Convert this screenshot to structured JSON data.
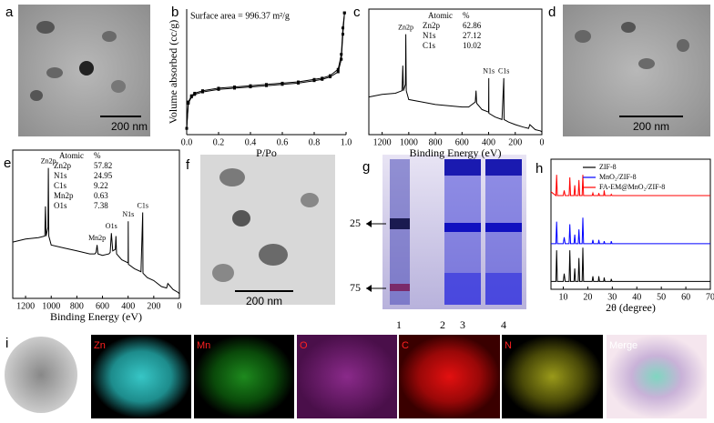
{
  "panel_labels": [
    "a",
    "b",
    "c",
    "d",
    "e",
    "f",
    "g",
    "h",
    "i"
  ],
  "scale_bars": [
    "200 nm",
    "200 nm",
    "200 nm"
  ],
  "gel": {
    "markers": [
      "25",
      "75"
    ],
    "lanes": [
      "1",
      "2",
      "3",
      "4"
    ]
  },
  "maps": {
    "labels": [
      "Zn",
      "Mn",
      "O",
      "C",
      "N",
      "Merge"
    ]
  },
  "chart_data": [
    {
      "type": "line",
      "x_label": "P/Po",
      "y_label": "Volume absorbed (cc/g)",
      "annotation": "Surface area = 996.37 m²/g",
      "markers": true,
      "x": [
        0,
        0.01,
        0.03,
        0.05,
        0.1,
        0.2,
        0.3,
        0.4,
        0.5,
        0.6,
        0.7,
        0.8,
        0.85,
        0.9,
        0.95,
        0.97,
        0.98,
        0.99
      ],
      "series": [
        {
          "color": "#000000",
          "values": [
            5,
            25,
            30,
            32,
            34,
            36,
            37,
            38,
            39,
            40,
            41,
            43,
            44,
            46,
            50,
            60,
            80,
            97
          ]
        },
        {
          "color": "#000000",
          "values": [
            5,
            26,
            31,
            33,
            35,
            37,
            38,
            39,
            40,
            41,
            42,
            44,
            45,
            47,
            52,
            64,
            85,
            97
          ]
        }
      ],
      "xlim": [
        0,
        1
      ],
      "ylim": [
        0,
        100
      ],
      "xticks": [
        {
          "value": 0,
          "label": "0.0"
        },
        0.2,
        0.4,
        0.6,
        0.8,
        {
          "value": 1,
          "label": "1.0"
        }
      ]
    },
    {
      "type": "line",
      "x_label": "Binding Energy (eV)",
      "inset": {
        "header": [
          "Atomic",
          "%"
        ],
        "rows": [
          [
            "Zn2p",
            "62.86"
          ],
          [
            "N1s",
            "27.12"
          ],
          [
            "C1s",
            "10.02"
          ]
        ]
      },
      "peaks": [
        {
          "label": "Zn2p",
          "x": 1022
        },
        {
          "label": "N1s",
          "x": 399
        },
        {
          "label": "C1s",
          "x": 286
        }
      ],
      "x": [
        1300,
        1200,
        1100,
        1050,
        1045,
        1040,
        1025,
        1022,
        1019,
        1000,
        900,
        800,
        700,
        600,
        550,
        500,
        495,
        490,
        450,
        400,
        399,
        398,
        350,
        300,
        286,
        284,
        250,
        200,
        140,
        100,
        90,
        50,
        10,
        0
      ],
      "series": [
        {
          "color": "#000000",
          "values": [
            30,
            32,
            33,
            35,
            55,
            35,
            40,
            80,
            35,
            28,
            26,
            24,
            23,
            22,
            22,
            26,
            35,
            25,
            20,
            18,
            45,
            17,
            14,
            12,
            45,
            12,
            10,
            8,
            6,
            5,
            8,
            4,
            3,
            2
          ]
        }
      ],
      "xlim": [
        1300,
        0
      ],
      "ylim": [
        0,
        100
      ],
      "xticks": [
        1200,
        1000,
        800,
        600,
        400,
        200,
        0
      ]
    },
    {
      "type": "line",
      "x_label": "Binding Energy (eV)",
      "inset": {
        "header": [
          "Atomic",
          "%"
        ],
        "rows": [
          [
            "Zn2p",
            "57.82"
          ],
          [
            "N1s",
            "24.95"
          ],
          [
            "C1s",
            "9.22"
          ],
          [
            "Mn2p",
            "0.63"
          ],
          [
            "O1s",
            "7.38"
          ]
        ]
      },
      "peaks": [
        {
          "label": "Zn2p",
          "x": 1022
        },
        {
          "label": "Mn2p",
          "x": 642
        },
        {
          "label": "O1s",
          "x": 531
        },
        {
          "label": "N1s",
          "x": 399
        },
        {
          "label": "C1s",
          "x": 286
        }
      ],
      "x": [
        1300,
        1200,
        1100,
        1050,
        1045,
        1040,
        1025,
        1022,
        1019,
        1000,
        900,
        800,
        700,
        660,
        650,
        642,
        635,
        600,
        550,
        540,
        531,
        520,
        500,
        495,
        490,
        450,
        400,
        399,
        398,
        350,
        300,
        286,
        284,
        250,
        200,
        140,
        100,
        90,
        50,
        10,
        0
      ],
      "series": [
        {
          "color": "#000000",
          "values": [
            38,
            40,
            41,
            42,
            62,
            42,
            48,
            88,
            42,
            36,
            34,
            32,
            30,
            30,
            31,
            36,
            30,
            29,
            30,
            31,
            44,
            32,
            33,
            42,
            30,
            26,
            24,
            52,
            23,
            20,
            18,
            58,
            17,
            14,
            12,
            8,
            7,
            10,
            6,
            4,
            3
          ]
        }
      ],
      "xlim": [
        1300,
        0
      ],
      "ylim": [
        0,
        100
      ],
      "xticks": [
        1200,
        1000,
        800,
        600,
        400,
        200,
        0
      ]
    },
    {
      "type": "line",
      "x_label": "2θ (degree)",
      "legend": "upper right",
      "x": [
        5,
        7,
        7.3,
        7.6,
        10,
        10.4,
        10.8,
        12.4,
        12.7,
        13,
        14.4,
        14.7,
        15,
        16.1,
        16.4,
        16.7,
        17.7,
        18,
        18.3,
        21.8,
        22.1,
        22.4,
        24.3,
        24.5,
        24.8,
        26.5,
        26.7,
        27,
        29.4,
        29.6,
        29.9,
        35,
        40,
        50,
        60,
        70
      ],
      "series": [
        {
          "name": "ZIF-8",
          "color": "#000000",
          "values": [
            6,
            6,
            30,
            6,
            6,
            12,
            6,
            6,
            30,
            6,
            6,
            16,
            6,
            6,
            24,
            6,
            6,
            32,
            6,
            6,
            10,
            6,
            6,
            10,
            6,
            6,
            9,
            6,
            6,
            8,
            6,
            6,
            6,
            6,
            6,
            6
          ]
        },
        {
          "name": "MnO₂/ZIF-8",
          "color": "#0000ff",
          "values": [
            35,
            35,
            52,
            35,
            35,
            40,
            35,
            35,
            50,
            35,
            35,
            42,
            35,
            35,
            46,
            35,
            35,
            55,
            35,
            35,
            38,
            35,
            35,
            38,
            35,
            35,
            37,
            35,
            35,
            37,
            35,
            35,
            35,
            35,
            35,
            35
          ]
        },
        {
          "name": "FA-EM@MnO₂/ZIF-8",
          "color": "#ff0000",
          "values": [
            75,
            72,
            88,
            72,
            72,
            76,
            72,
            72,
            86,
            72,
            72,
            80,
            72,
            72,
            84,
            72,
            72,
            88,
            72,
            72,
            74,
            72,
            72,
            74,
            72,
            72,
            76,
            72,
            72,
            73,
            72,
            72,
            72,
            72,
            72,
            72
          ]
        }
      ],
      "xlim": [
        5,
        70
      ],
      "ylim": [
        0,
        100
      ],
      "xticks": [
        10,
        20,
        30,
        40,
        50,
        60,
        70
      ]
    }
  ]
}
